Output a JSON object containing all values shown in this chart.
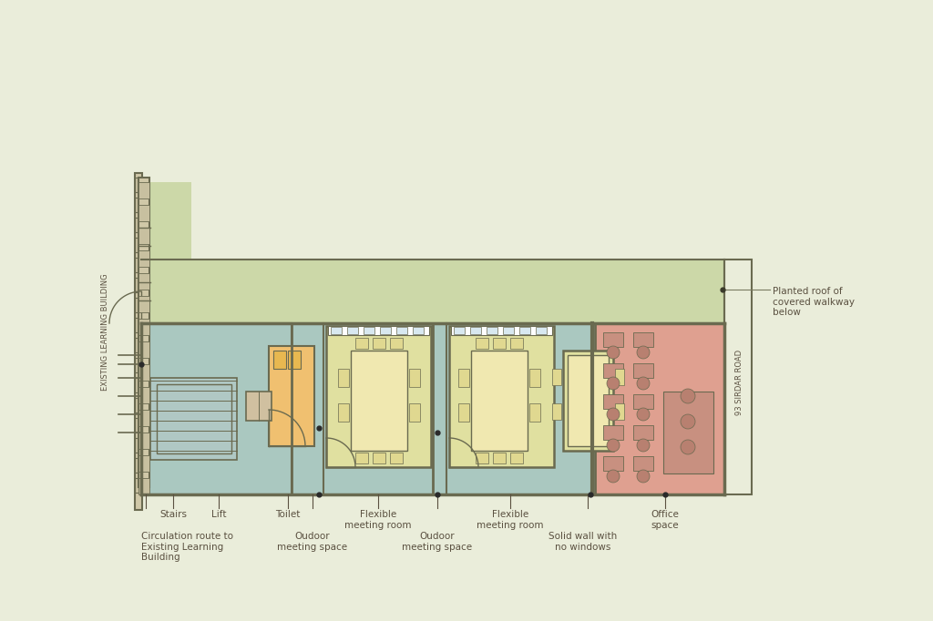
{
  "bg_color": "#eaedda",
  "wall_color": "#6a6a50",
  "colors": {
    "circulation_blue": "#aac8c0",
    "flexible_yellow": "#e0e0a0",
    "office_pink": "#dfa090",
    "toilet_orange": "#f0c070",
    "planted_roof": "#ccd8a8",
    "existing_green": "#ccd8a8",
    "corridor_blue": "#aac8c0"
  },
  "labels": {
    "existing_building": "EXISTING LEARNING BUILDING",
    "circulation": "Circulation route to\nExisting Learning\nBuilding",
    "stairs": "Stairs",
    "lift": "Lift",
    "toilet": "Toilet",
    "outdoor1": "Oudoor\nmeeting space",
    "flexible1": "Flexible\nmeeting room",
    "outdoor2": "Oudoor\nmeeting space",
    "flexible2": "Flexible\nmeeting room",
    "solid_wall": "Solid wall with\nno windows",
    "office": "Office\nspace",
    "road": "93 SIRDAR ROAD",
    "planted_roof": "Planted roof of\ncovered walkway\nbelow"
  }
}
